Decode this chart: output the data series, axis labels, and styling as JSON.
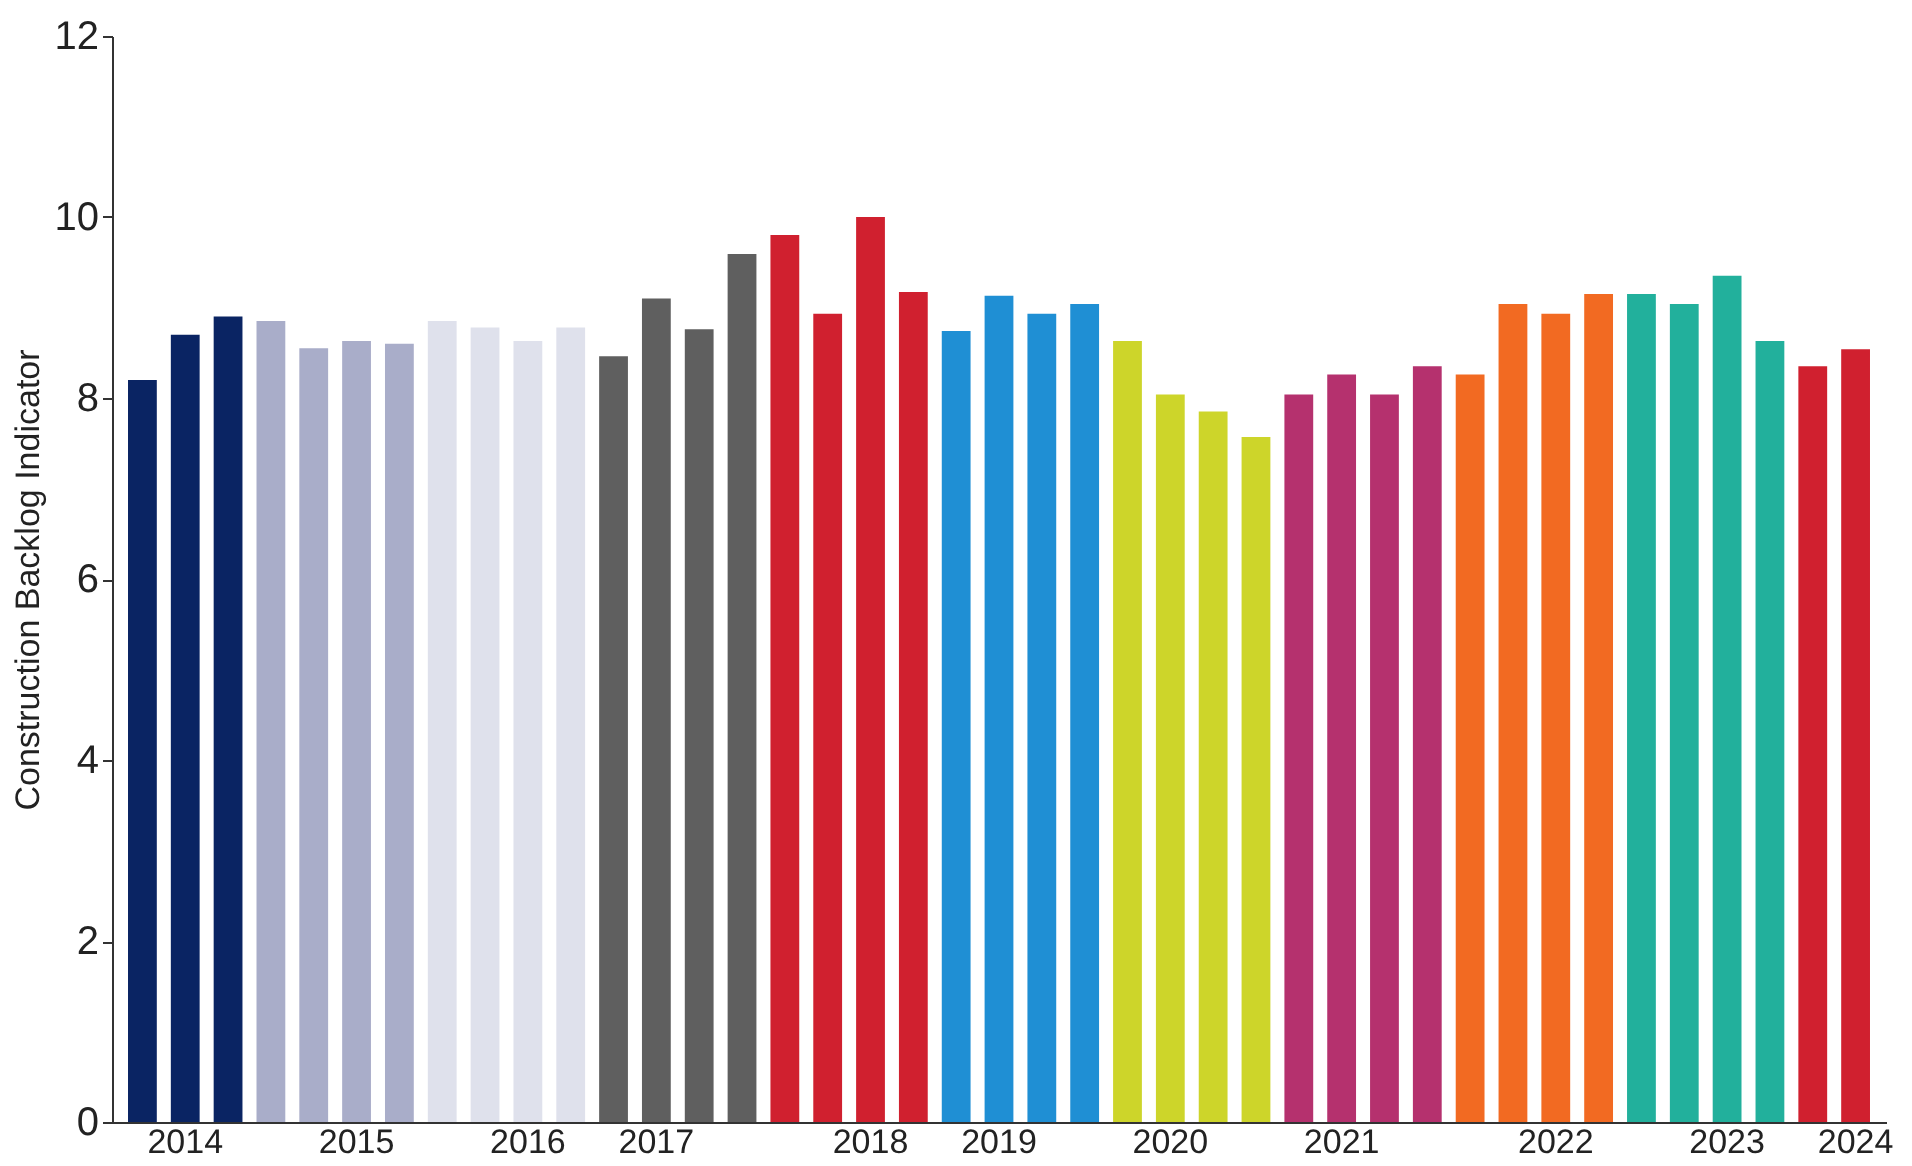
{
  "chart_data": {
    "type": "bar",
    "ylabel": "Construction Backlog Indicator",
    "categories": [
      null,
      "2014",
      null,
      null,
      null,
      "2015",
      null,
      null,
      null,
      "2016",
      null,
      null,
      "2017",
      null,
      null,
      null,
      null,
      "2018",
      null,
      null,
      "2019",
      null,
      null,
      null,
      "2020",
      null,
      null,
      null,
      "2021",
      null,
      null,
      null,
      null,
      "2022",
      null,
      null,
      null,
      "2023",
      null,
      null,
      "2024"
    ],
    "values": [
      8.2,
      8.7,
      8.9,
      8.85,
      8.55,
      8.63,
      8.6,
      8.85,
      8.78,
      8.63,
      8.78,
      8.46,
      9.1,
      8.76,
      9.59,
      9.8,
      8.93,
      10.0,
      9.17,
      8.74,
      9.13,
      8.93,
      9.04,
      8.63,
      8.04,
      7.85,
      7.57,
      8.04,
      8.26,
      8.04,
      8.35,
      8.26,
      9.04,
      8.93,
      9.15,
      9.15,
      9.04,
      9.35,
      8.63,
      8.35,
      8.54
    ],
    "colors": [
      "#0a2463",
      "#0a2463",
      "#0a2463",
      "#a9adc9",
      "#a9adc9",
      "#a9adc9",
      "#a9adc9",
      "#dfe1ec",
      "#dfe1ec",
      "#dfe1ec",
      "#dfe1ec",
      "#5f5f5f",
      "#5f5f5f",
      "#5f5f5f",
      "#5f5f5f",
      "#d0202f",
      "#d0202f",
      "#d0202f",
      "#d0202f",
      "#1f8fd4",
      "#1f8fd4",
      "#1f8fd4",
      "#1f8fd4",
      "#cdd52a",
      "#cdd52a",
      "#cdd52a",
      "#cdd52a",
      "#b5316e",
      "#b5316e",
      "#b5316e",
      "#b5316e",
      "#f26a22",
      "#f26a22",
      "#f26a22",
      "#f26a22",
      "#22b09c",
      "#22b09c",
      "#22b09c",
      "#22b09c",
      "#d0202f",
      "#d0202f"
    ],
    "ylim": [
      0,
      12
    ],
    "yticks": [
      0,
      2,
      4,
      6,
      8,
      10,
      12
    ],
    "grid": false
  }
}
